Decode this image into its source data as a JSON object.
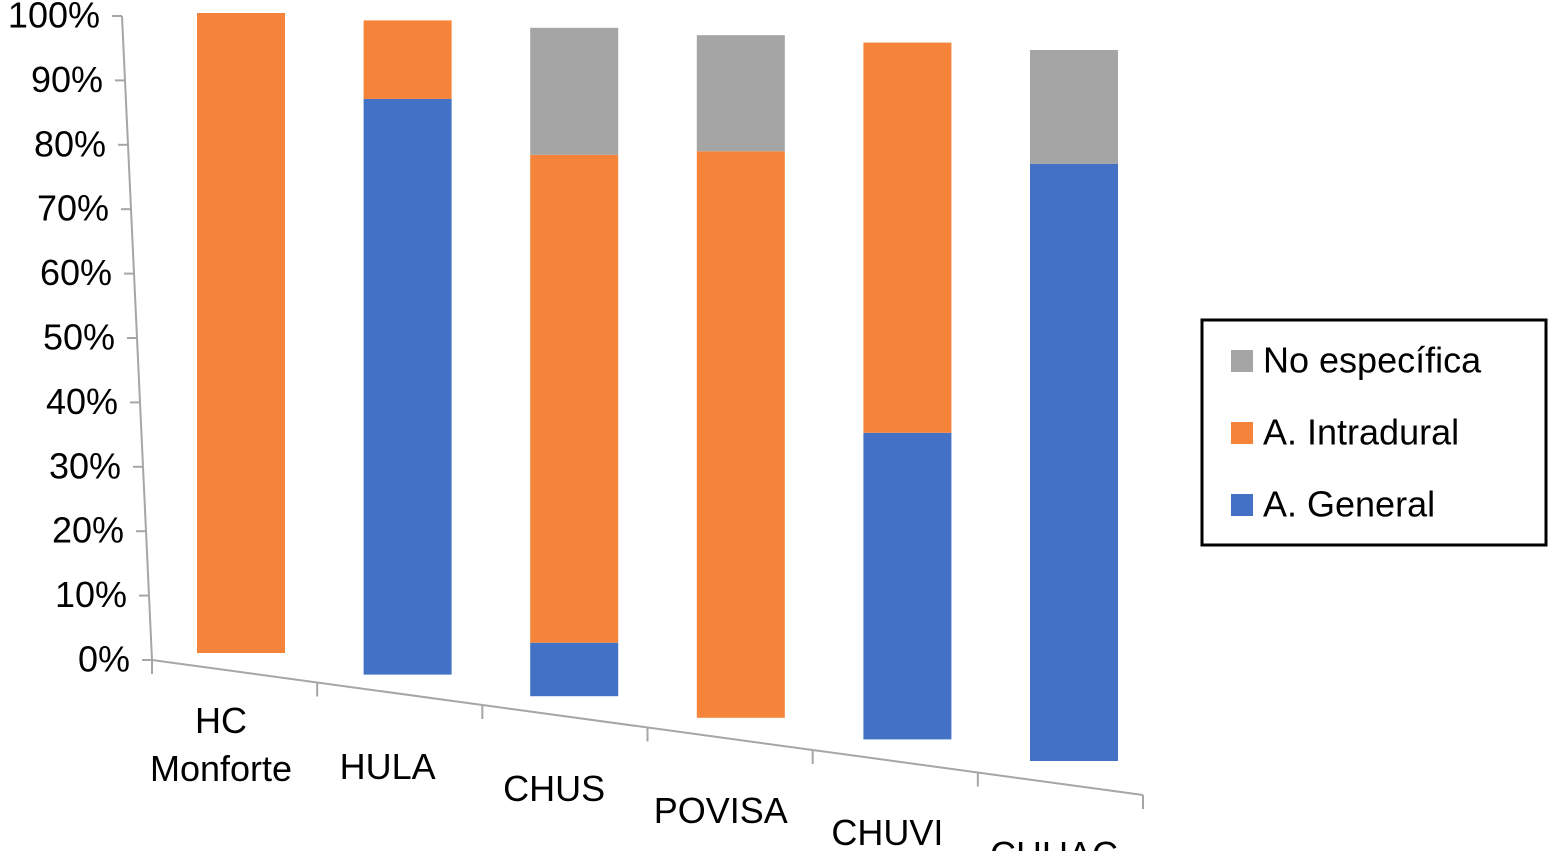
{
  "chart_data": {
    "type": "bar",
    "stacked": true,
    "categories": [
      "HC Monforte",
      "HULA",
      "CHUS",
      "POVISA",
      "CHUVI",
      "CHUAC"
    ],
    "series": [
      {
        "name": "A. General",
        "color": "#4271c6",
        "values": [
          0,
          88,
          8,
          0,
          44,
          84
        ]
      },
      {
        "name": "A. Intradural",
        "color": "#f5843a",
        "values": [
          100,
          12,
          73,
          83,
          56,
          0
        ]
      },
      {
        "name": "No específica",
        "color": "#a5a5a5",
        "values": [
          0,
          0,
          19,
          17,
          0,
          16
        ]
      }
    ],
    "ylim": [
      0,
      100
    ],
    "yticks": [
      {
        "value": 0,
        "label": "0%"
      },
      {
        "value": 10,
        "label": "10%"
      },
      {
        "value": 20,
        "label": "20%"
      },
      {
        "value": 30,
        "label": "30%"
      },
      {
        "value": 40,
        "label": "40%"
      },
      {
        "value": 50,
        "label": "50%"
      },
      {
        "value": 60,
        "label": "60%"
      },
      {
        "value": 70,
        "label": "70%"
      },
      {
        "value": 80,
        "label": "80%"
      },
      {
        "value": 90,
        "label": "90%"
      },
      {
        "value": 100,
        "label": "100%"
      }
    ],
    "legend": "right"
  }
}
